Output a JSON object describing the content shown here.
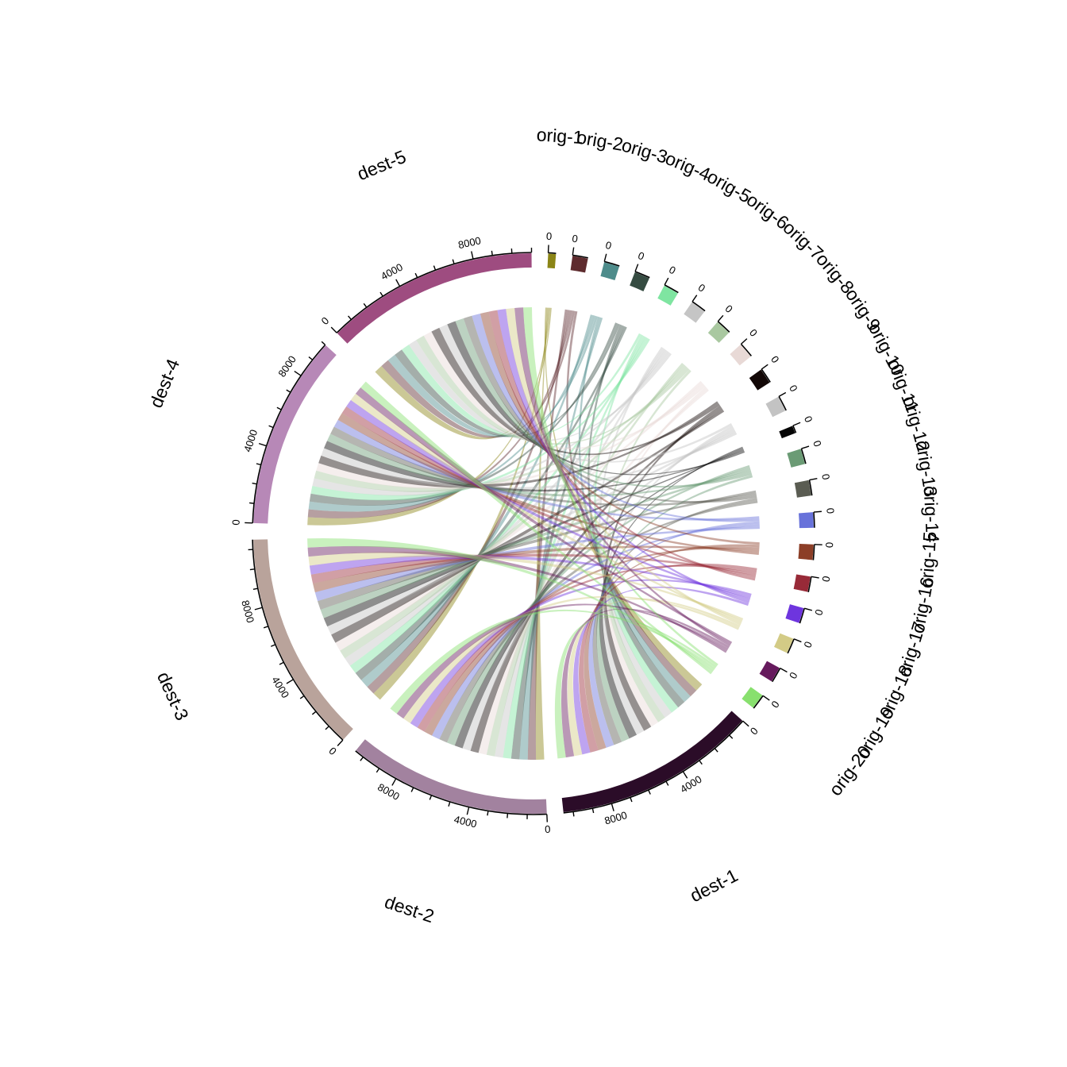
{
  "chart_data": {
    "type": "chord",
    "title": "",
    "sectors": [
      {
        "name": "orig-1",
        "role": "origin",
        "total": 400,
        "color": "#8b8516"
      },
      {
        "name": "orig-2",
        "role": "origin",
        "total": 800,
        "color": "#5e2b2e"
      },
      {
        "name": "orig-3",
        "role": "origin",
        "total": 800,
        "color": "#4e8c8b"
      },
      {
        "name": "orig-4",
        "role": "origin",
        "total": 800,
        "color": "#364c42"
      },
      {
        "name": "orig-5",
        "role": "origin",
        "total": 800,
        "color": "#7fe5a1"
      },
      {
        "name": "orig-6",
        "role": "origin",
        "total": 800,
        "color": "#c5c5c5"
      },
      {
        "name": "orig-7",
        "role": "origin",
        "total": 800,
        "color": "#a9c8a0"
      },
      {
        "name": "orig-8",
        "role": "origin",
        "total": 800,
        "color": "#e8d9d6"
      },
      {
        "name": "orig-9",
        "role": "origin",
        "total": 800,
        "color": "#130807"
      },
      {
        "name": "orig-10",
        "role": "origin",
        "total": 800,
        "color": "#c3c3c3"
      },
      {
        "name": "orig-11",
        "role": "origin",
        "total": 400,
        "color": "#050505"
      },
      {
        "name": "orig-12",
        "role": "origin",
        "total": 800,
        "color": "#6b9b75"
      },
      {
        "name": "orig-13",
        "role": "origin",
        "total": 800,
        "color": "#5a5c52"
      },
      {
        "name": "orig-14",
        "role": "origin",
        "total": 800,
        "color": "#6872da"
      },
      {
        "name": "orig-15",
        "role": "origin",
        "total": 800,
        "color": "#8c3e27"
      },
      {
        "name": "orig-16",
        "role": "origin",
        "total": 800,
        "color": "#982a38"
      },
      {
        "name": "orig-17",
        "role": "origin",
        "total": 800,
        "color": "#6e35de"
      },
      {
        "name": "orig-18",
        "role": "origin",
        "total": 800,
        "color": "#d3cb86"
      },
      {
        "name": "orig-19",
        "role": "origin",
        "total": 800,
        "color": "#661a5d"
      },
      {
        "name": "orig-20",
        "role": "origin",
        "total": 800,
        "color": "#88e06e"
      },
      {
        "name": "dest-1",
        "role": "destination",
        "total": 10500,
        "color": "#2b0c28"
      },
      {
        "name": "dest-2",
        "role": "destination",
        "total": 10500,
        "color": "#a2829f"
      },
      {
        "name": "dest-3",
        "role": "destination",
        "total": 11500,
        "color": "#b9a39b"
      },
      {
        "name": "dest-4",
        "role": "destination",
        "total": 10000,
        "color": "#b788b7"
      },
      {
        "name": "dest-5",
        "role": "destination",
        "total": 11000,
        "color": "#9e4c80"
      }
    ],
    "tick_labels": {
      "origin": [
        "0"
      ],
      "destination": [
        "0",
        "4000",
        "8000"
      ]
    },
    "tick_step": 1000,
    "label_step": 4000,
    "link_opacity": 0.45
  }
}
